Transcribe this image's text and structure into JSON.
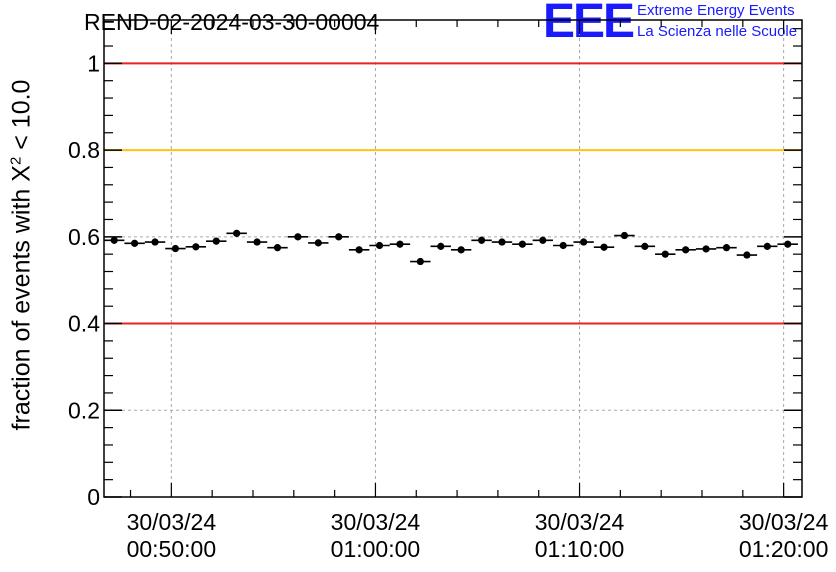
{
  "title": "REND-02-2024-03-30-00004",
  "logo": {
    "mark": "EEE",
    "line1": "Extreme Energy Events",
    "line2": "La Scienza nelle Scuole",
    "color": "#1a1aff"
  },
  "chart_data": {
    "type": "scatter",
    "title": "REND-02-2024-03-30-00004",
    "ylabel_parts": {
      "before": "fraction of events with X",
      "sup": "2",
      "after": " < 10.0"
    },
    "xlabel": "",
    "ylim": [
      0,
      1.1
    ],
    "yticks": [
      0,
      0.2,
      0.4,
      0.6,
      0.8,
      1
    ],
    "ytick_labels": [
      "0",
      "0.2",
      "0.4",
      "0.6",
      "0.8",
      "1"
    ],
    "xlim_minutes": [
      46.7,
      80.9
    ],
    "xticks": [
      {
        "minutes": 50,
        "date": "30/03/24",
        "time": "00:50:00"
      },
      {
        "minutes": 60,
        "date": "30/03/24",
        "time": "01:00:00"
      },
      {
        "minutes": 70,
        "date": "30/03/24",
        "time": "01:10:00"
      },
      {
        "minutes": 80,
        "date": "30/03/24",
        "time": "01:20:00"
      }
    ],
    "grid": true,
    "reference_lines": [
      {
        "y": 1.0,
        "color": "#e8231e"
      },
      {
        "y": 0.8,
        "color": "#ffc20e"
      },
      {
        "y": 0.4,
        "color": "#e8231e"
      }
    ],
    "series": [
      {
        "color": "#000000",
        "bin_width_minutes": 1,
        "x_minutes": [
          47.2,
          48.2,
          49.2,
          50.2,
          51.2,
          52.2,
          53.2,
          54.2,
          55.2,
          56.2,
          57.2,
          58.2,
          59.2,
          60.2,
          61.2,
          62.2,
          63.2,
          64.2,
          65.2,
          66.2,
          67.2,
          68.2,
          69.2,
          70.2,
          71.2,
          72.2,
          73.2,
          74.2,
          75.2,
          76.2,
          77.2,
          78.2,
          79.2,
          80.2
        ],
        "y": [
          0.592,
          0.585,
          0.588,
          0.573,
          0.577,
          0.59,
          0.608,
          0.588,
          0.575,
          0.6,
          0.586,
          0.6,
          0.57,
          0.58,
          0.583,
          0.543,
          0.578,
          0.57,
          0.592,
          0.588,
          0.583,
          0.592,
          0.58,
          0.588,
          0.576,
          0.603,
          0.578,
          0.56,
          0.57,
          0.572,
          0.575,
          0.558,
          0.578,
          0.583
        ],
        "y_err": [
          0.008,
          0.008,
          0.008,
          0.008,
          0.008,
          0.008,
          0.008,
          0.008,
          0.008,
          0.008,
          0.008,
          0.008,
          0.008,
          0.008,
          0.008,
          0.008,
          0.008,
          0.008,
          0.008,
          0.008,
          0.008,
          0.008,
          0.008,
          0.008,
          0.008,
          0.008,
          0.008,
          0.008,
          0.008,
          0.008,
          0.008,
          0.008,
          0.008,
          0.008
        ]
      }
    ]
  }
}
